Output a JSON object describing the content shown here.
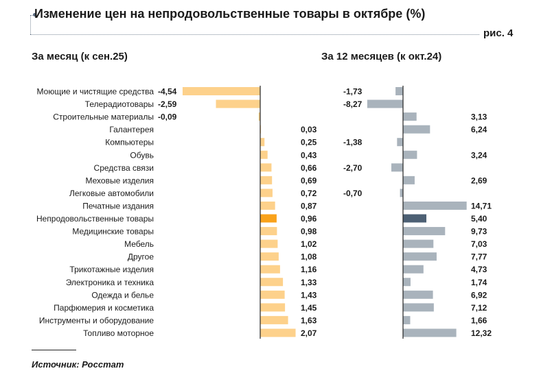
{
  "header": {
    "title": "Изменение цен на непродовольственные товары в октябре (%)",
    "figure_label": "рис. 4"
  },
  "footer": {
    "source": "Источник: Росстат"
  },
  "colors": {
    "month_bar": "#fdd18b",
    "month_highlight": "#f9a21b",
    "year_bar": "#a9b3bc",
    "year_highlight": "#4d6074",
    "axis": "#222222"
  },
  "chart_data": [
    {
      "type": "bar",
      "orientation": "horizontal",
      "title": "За месяц (к сен.25)",
      "categories": [
        "Моющие и чистящие средства",
        "Телерадиотовары",
        "Строительные материалы",
        "Галантерея",
        "Компьютеры",
        "Обувь",
        "Средства связи",
        "Меховые изделия",
        "Легковые автомобили",
        "Печатные издания",
        "Непродовольственные товары",
        "Медицинские товары",
        "Мебель",
        "Другое",
        "Трикотажные изделия",
        "Электроника и техника",
        "Одежда и белье",
        "Парфюмерия и косметика",
        "Инструменты и оборудование",
        "Топливо моторное"
      ],
      "values": [
        -4.54,
        -2.59,
        -0.09,
        0.03,
        0.25,
        0.43,
        0.66,
        0.69,
        0.72,
        0.87,
        0.96,
        0.98,
        1.02,
        1.08,
        1.16,
        1.33,
        1.43,
        1.45,
        1.63,
        2.07
      ],
      "labels": [
        "-4,54",
        "-2,59",
        "-0,09",
        "0,03",
        "0,25",
        "0,43",
        "0,66",
        "0,69",
        "0,72",
        "0,87",
        "0,96",
        "0,98",
        "1,02",
        "1,08",
        "1,16",
        "1,33",
        "1,43",
        "1,45",
        "1,63",
        "2,07"
      ],
      "highlight": "Непродовольственные товары",
      "xlim": [
        -4.6,
        2.1
      ],
      "grid": false
    },
    {
      "type": "bar",
      "orientation": "horizontal",
      "title": "За 12 месяцев (к окт.24)",
      "categories": [
        "Моющие и чистящие средства",
        "Телерадиотовары",
        "Строительные материалы",
        "Галантерея",
        "Компьютеры",
        "Обувь",
        "Средства связи",
        "Меховые изделия",
        "Легковые автомобили",
        "Печатные издания",
        "Непродовольственные товары",
        "Медицинские товары",
        "Мебель",
        "Другое",
        "Трикотажные изделия",
        "Электроника и техника",
        "Одежда и белье",
        "Парфюмерия и косметика",
        "Инструменты и оборудование",
        "Топливо моторное"
      ],
      "values": [
        -1.73,
        -8.27,
        3.13,
        6.24,
        -1.38,
        3.24,
        -2.7,
        2.69,
        -0.7,
        14.71,
        5.4,
        9.73,
        7.03,
        7.77,
        4.73,
        1.74,
        6.92,
        7.12,
        1.66,
        12.32
      ],
      "labels": [
        "-1,73",
        "-8,27",
        "3,13",
        "6,24",
        "-1,38",
        "3,24",
        "-2,70",
        "2,69",
        "-0,70",
        "14,71",
        "5,40",
        "9,73",
        "7,03",
        "7,77",
        "4,73",
        "1,74",
        "6,92",
        "7,12",
        "1,66",
        "12,32"
      ],
      "highlight": "Непродовольственные товары",
      "xlim": [
        -8.3,
        14.8
      ],
      "grid": false
    }
  ]
}
